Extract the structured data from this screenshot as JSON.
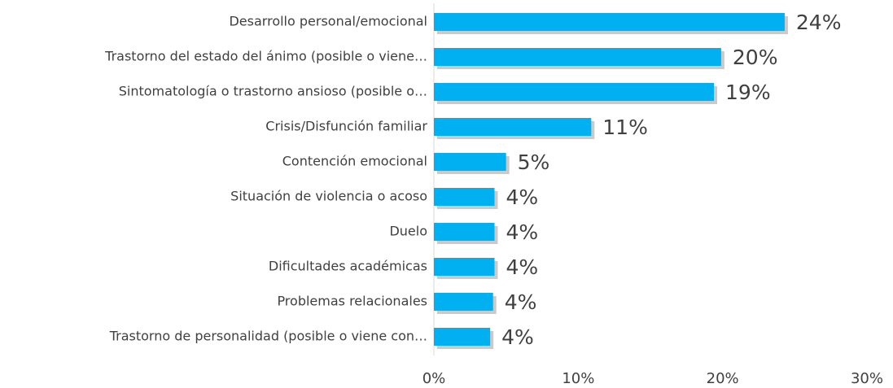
{
  "chart_data": {
    "type": "bar",
    "orientation": "horizontal",
    "categories": [
      "Desarrollo personal/emocional",
      "Trastorno del estado del ánimo (posible o viene…",
      "Sintomatología o trastorno ansioso (posible o…",
      "Crisis/Disfunción familiar",
      "Contención emocional",
      "Situación de violencia o acoso",
      "Duelo",
      "Dificultades académicas",
      "Problemas relacionales",
      "Trastorno de personalidad (posible o viene con…"
    ],
    "values": [
      24.3,
      19.9,
      19.4,
      10.9,
      5.0,
      4.2,
      4.2,
      4.2,
      4.1,
      3.9
    ],
    "value_labels": [
      "24%",
      "20%",
      "19%",
      "11%",
      "5%",
      "4%",
      "4%",
      "4%",
      "4%",
      "4%"
    ],
    "color": "#00b0f0",
    "xlim": [
      0,
      30
    ],
    "xticks": [
      {
        "value": 0,
        "label": "0%"
      },
      {
        "value": 10,
        "label": "10%"
      },
      {
        "value": 20,
        "label": "20%"
      },
      {
        "value": 30,
        "label": "30%"
      }
    ]
  }
}
